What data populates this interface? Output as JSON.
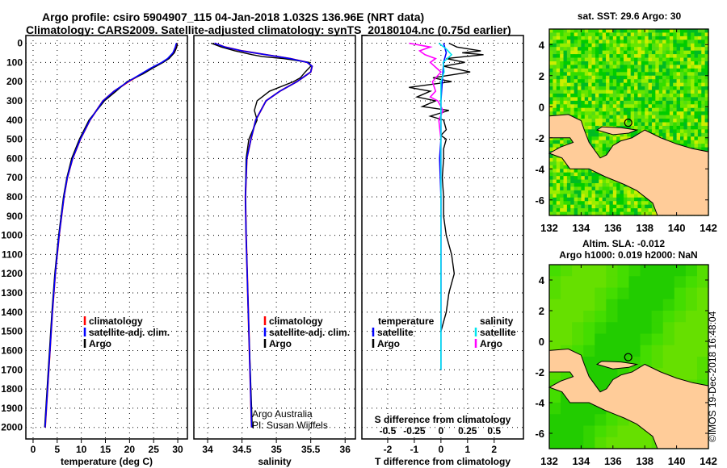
{
  "title_line1": "Argo profile: csiro 5904907_115 04-Jan-2018 1.032S 136.96E (NRT data)",
  "title_line2": "Climatology: CARS2009. Satellite-adjusted climatology: synTS_20180104.nc (0.75d earlier)",
  "colors": {
    "climatology": "#ff0000",
    "satellite": "#0000ff",
    "argo": "#000000",
    "sal_satellite": "#00e5ee",
    "sal_argo": "#ff00ff",
    "land": "#ffcc99"
  },
  "chart_data": [
    {
      "type": "line",
      "name": "temperature",
      "xlabel": "temperature (deg C)",
      "xlim": [
        -1.5,
        32
      ],
      "ylim": [
        2060,
        -40
      ],
      "xticks": [
        "0",
        "5",
        "10",
        "15",
        "20",
        "25",
        "30"
      ],
      "xtick_values": [
        0,
        5,
        10,
        15,
        20,
        25,
        30
      ],
      "yticks": [
        0,
        100,
        200,
        300,
        400,
        500,
        600,
        700,
        800,
        900,
        1000,
        1100,
        1200,
        1300,
        1400,
        1500,
        1600,
        1700,
        1800,
        1900,
        2000
      ],
      "legend": [
        "climatology",
        "satellite-adj. clim.",
        "Argo"
      ],
      "series": [
        {
          "name": "climatology",
          "depth": [
            0,
            20,
            50,
            80,
            100,
            130,
            160,
            200,
            250,
            300,
            400,
            500,
            600,
            700,
            800,
            1000,
            1200,
            1400,
            1600,
            1800,
            2000
          ],
          "values": [
            29.9,
            29.7,
            29.2,
            28,
            26.8,
            24.5,
            22.5,
            19.8,
            16.8,
            14.5,
            11.8,
            9.8,
            8.2,
            7.1,
            6.4,
            5.4,
            4.6,
            4,
            3.5,
            3,
            2.5
          ]
        },
        {
          "name": "satellite-adj. clim.",
          "depth": [
            0,
            20,
            50,
            80,
            100,
            130,
            160,
            200,
            250,
            300,
            400,
            500,
            600,
            700,
            800,
            1000,
            1200,
            1400,
            1600,
            1800,
            2000
          ],
          "values": [
            29.7,
            29.5,
            29,
            27.9,
            26.7,
            24.4,
            22.4,
            19.7,
            16.8,
            14.5,
            11.8,
            9.8,
            8.2,
            7.1,
            6.4,
            5.4,
            4.6,
            4,
            3.5,
            3,
            2.5
          ]
        },
        {
          "name": "Argo",
          "depth": [
            0,
            20,
            50,
            80,
            100,
            130,
            160,
            200,
            250,
            300,
            400,
            500,
            600,
            700,
            800,
            1000,
            1200,
            1400,
            1600,
            1800,
            2000
          ],
          "values": [
            29.9,
            29.8,
            29.3,
            28.2,
            27,
            24.8,
            22.8,
            19.5,
            17.2,
            14.8,
            11.6,
            9.6,
            8,
            7,
            6.3,
            5.3,
            4.5,
            3.9,
            3.4,
            2.9,
            2.4
          ]
        }
      ]
    },
    {
      "type": "line",
      "name": "salinity",
      "xlabel": "salinity",
      "xlim": [
        33.8,
        36.15
      ],
      "ylim": [
        2060,
        -40
      ],
      "xticks": [
        "34",
        "34.5",
        "35",
        "35.5",
        "36"
      ],
      "xtick_values": [
        34,
        34.5,
        35,
        35.5,
        36
      ],
      "legend": [
        "climatology",
        "satellite-adj. clim.",
        "Argo"
      ],
      "annotation": [
        "Argo Australia",
        "PI: Susan Wijffels"
      ],
      "series": [
        {
          "name": "climatology",
          "depth": [
            0,
            20,
            40,
            60,
            80,
            100,
            120,
            150,
            200,
            250,
            300,
            400,
            500,
            600,
            800,
            1000,
            1500,
            2000
          ],
          "values": [
            34.1,
            34.25,
            34.5,
            34.85,
            35.2,
            35.45,
            35.52,
            35.5,
            35.3,
            35.05,
            34.85,
            34.7,
            34.63,
            34.57,
            34.55,
            34.56,
            34.6,
            34.64
          ]
        },
        {
          "name": "satellite-adj. clim.",
          "depth": [
            0,
            20,
            40,
            60,
            80,
            100,
            120,
            150,
            200,
            250,
            300,
            400,
            500,
            600,
            800,
            1000,
            1500,
            2000
          ],
          "values": [
            34.1,
            34.25,
            34.5,
            34.85,
            35.2,
            35.45,
            35.52,
            35.5,
            35.3,
            35.05,
            34.85,
            34.7,
            34.63,
            34.57,
            34.55,
            34.56,
            34.6,
            34.64
          ]
        },
        {
          "name": "Argo",
          "depth": [
            0,
            20,
            40,
            60,
            70,
            80,
            100,
            120,
            150,
            180,
            200,
            250,
            300,
            350,
            400,
            500,
            600,
            800,
            1000,
            1500,
            2000
          ],
          "values": [
            34.05,
            34.2,
            34.4,
            34.65,
            34.8,
            35.1,
            35.48,
            35.5,
            35.42,
            35.35,
            35.25,
            34.9,
            34.72,
            34.68,
            34.72,
            34.6,
            34.56,
            34.55,
            34.56,
            34.6,
            34.65
          ]
        }
      ]
    },
    {
      "type": "line",
      "name": "differences",
      "xlabel": "T difference from climatology",
      "x2label": "S difference from climatology",
      "xlim": [
        -2.97,
        3.1
      ],
      "ylim": [
        2060,
        -40
      ],
      "xticks": [
        "-2",
        "-1",
        "0",
        "1",
        "2"
      ],
      "xtick_values": [
        -2,
        -1,
        0,
        1,
        2
      ],
      "x2ticks": [
        "-0.5",
        "-0.25",
        "0",
        "0.25",
        "0.5"
      ],
      "x2tick_values": [
        -0.5,
        -0.25,
        0,
        0.25,
        0.5
      ],
      "legend_left_title": "temperature",
      "legend_right_title": "salinity",
      "legend_left": [
        "satellite",
        "Argo"
      ],
      "legend_right": [
        "satellite",
        "Argo"
      ],
      "series": [
        {
          "name": "T satellite",
          "depth": [
            0,
            50,
            100,
            200,
            300,
            400,
            500,
            600,
            800,
            1000,
            1500,
            1700
          ],
          "values": [
            0.1,
            0.2,
            0.1,
            0.05,
            0,
            0,
            0,
            -0.05,
            0,
            0,
            0,
            0
          ]
        },
        {
          "name": "T Argo",
          "depth": [
            0,
            20,
            40,
            50,
            60,
            80,
            100,
            120,
            150,
            180,
            200,
            230,
            250,
            280,
            300,
            330,
            350,
            380,
            400,
            450,
            480,
            500,
            550,
            600,
            700,
            800,
            900,
            1000,
            1100,
            1200,
            1300,
            1400,
            1500
          ],
          "values": [
            0.3,
            0.6,
            1.5,
            0.8,
            1.6,
            0.2,
            0.9,
            0.1,
            1.1,
            -0.3,
            0.4,
            -1.2,
            -0.4,
            -0.9,
            -0.2,
            -0.7,
            0.3,
            -0.4,
            0.1,
            0.2,
            0,
            0.2,
            0.1,
            0.1,
            0.05,
            0.1,
            0.1,
            0.2,
            0.4,
            0.5,
            0.3,
            0.2,
            0
          ]
        },
        {
          "name": "S satellite",
          "depth": [
            0,
            30,
            60,
            100,
            150,
            200,
            300,
            400,
            500,
            700,
            1000,
            1500,
            1700
          ],
          "values": [
            -0.02,
            0.05,
            0.1,
            0.02,
            0.03,
            0,
            0,
            0,
            0,
            0,
            0,
            0,
            0
          ]
        },
        {
          "name": "S Argo",
          "depth": [
            0,
            20,
            40,
            60,
            80,
            100,
            150,
            200,
            250,
            280,
            300,
            350,
            400,
            500,
            600,
            800,
            1000,
            1500
          ],
          "values": [
            -0.3,
            -0.1,
            -0.2,
            -0.15,
            -0.05,
            -0.1,
            0,
            -0.08,
            -0.05,
            -0.1,
            -0.03,
            0.02,
            -0.02,
            0,
            0,
            0,
            0,
            0
          ]
        }
      ]
    }
  ],
  "maps": {
    "sst_title": "sat. SST: 29.6 Argo: 30",
    "sla_title1": "Altim. SLA: -0.012",
    "sla_title2": "Argo h1000: 0.019 h2000: NaN",
    "lon_ticks": [
      "132",
      "134",
      "136",
      "138",
      "140",
      "142"
    ],
    "lat_ticks": [
      "4",
      "2",
      "0",
      "-2",
      "-4",
      "-6"
    ],
    "float_lon": 136.96,
    "float_lat": -1.032
  },
  "credit": "©IMOS 19-Dec-2018 16:48:04"
}
